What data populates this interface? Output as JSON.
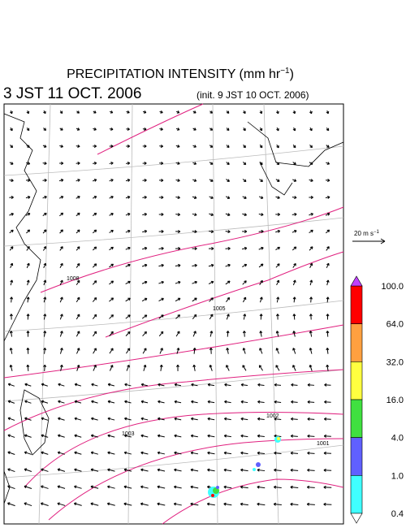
{
  "header": {
    "title": "PRECIPITATION INTENSITY (mm hr",
    "title_sup": "−1",
    "title_end": ")",
    "valid_time": "3 JST 11 OCT. 2006",
    "init_time": "(init. 9 JST 10 OCT. 2006)"
  },
  "scale": {
    "label": "20 m s",
    "label_sup": "−1"
  },
  "isobars": {
    "labels": [
      "1008",
      "1005",
      "1003",
      "1002",
      "1001"
    ]
  },
  "colorbar": {
    "labels": [
      "100.0",
      "64.0",
      "32.0",
      "16.0",
      "4.0",
      "1.0",
      "0.4"
    ],
    "colors": [
      "#ff0000",
      "#ffa040",
      "#ffff40",
      "#40e040",
      "#6060ff",
      "#40ffff"
    ],
    "over_color": "#c040ff",
    "under_color": "#ffffff"
  }
}
